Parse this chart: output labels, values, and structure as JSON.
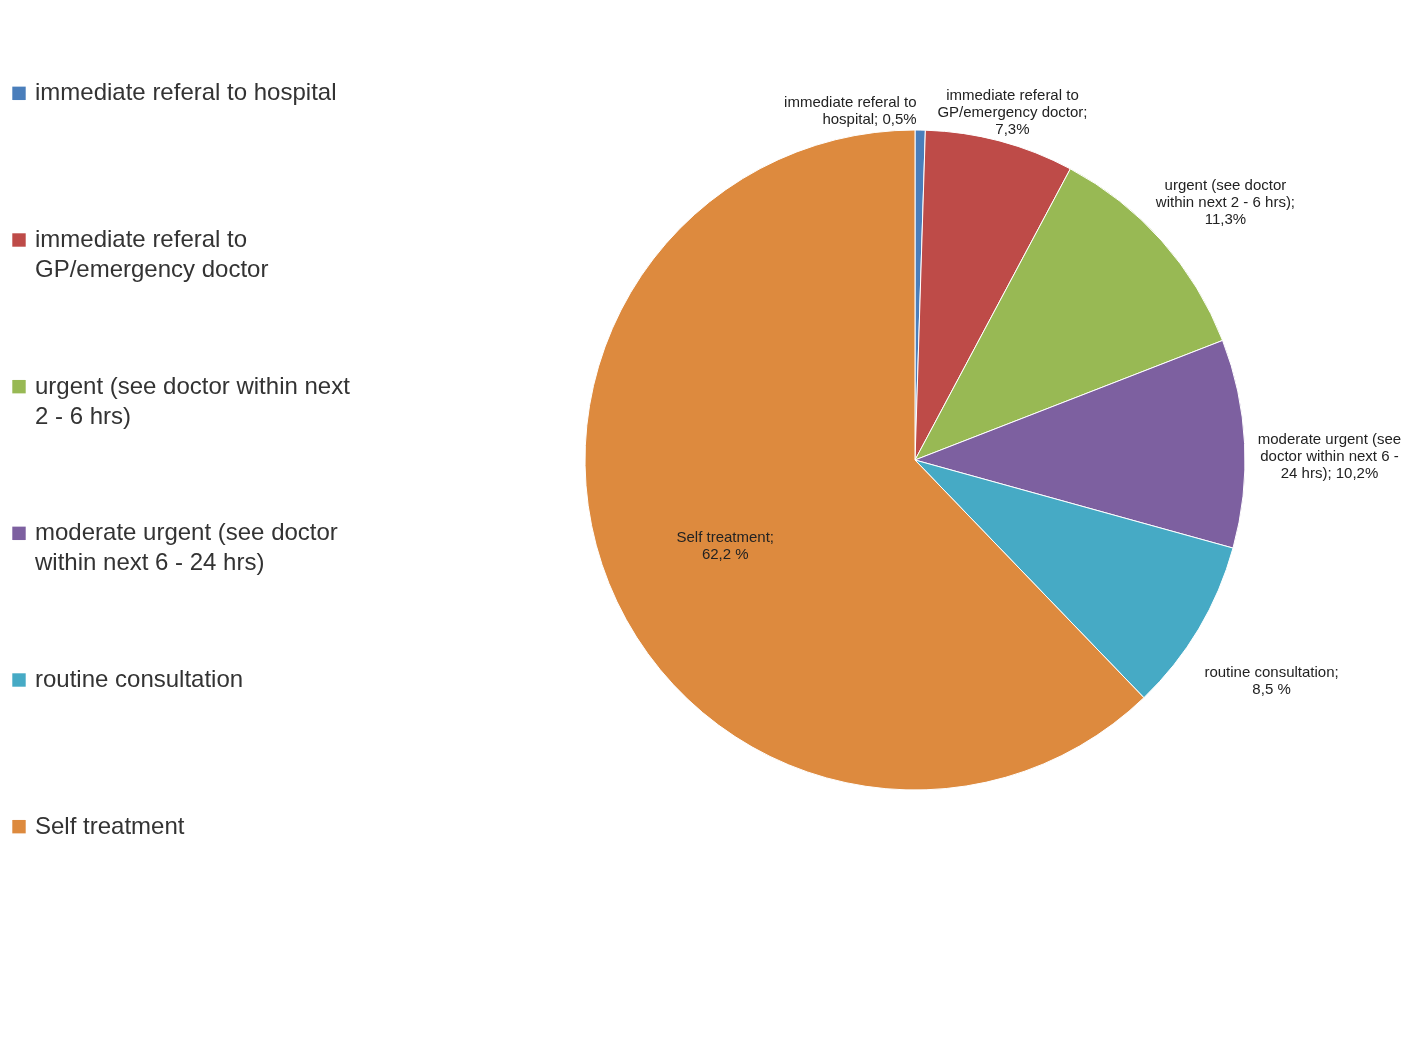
{
  "chart_data": {
    "type": "pie",
    "categories": [
      "immediate referal to hospital",
      "immediate referal to GP/emergency doctor",
      "urgent (see doctor within next 2 - 6 hrs)",
      "moderate urgent (see doctor within next 6 - 24 hrs)",
      "routine consultation",
      "Self treatment"
    ],
    "values": [
      0.5,
      7.3,
      11.3,
      10.2,
      8.5,
      62.2
    ],
    "colors": [
      "#4a7ebb",
      "#be4b48",
      "#98b954",
      "#7d60a0",
      "#46aac5",
      "#dd8a3e"
    ],
    "value_labels": [
      "immediate referal to hospital; 0,5%",
      "immediate referal to GP/emergency doctor; 7,3%",
      "urgent (see doctor within next 2 - 6 hrs); 11,3%",
      "moderate urgent (see doctor within next 6 - 24 hrs); 10,2%",
      "routine consultation; 8,5 %",
      "Self treatment; 62,2 %"
    ],
    "legend": "left"
  }
}
